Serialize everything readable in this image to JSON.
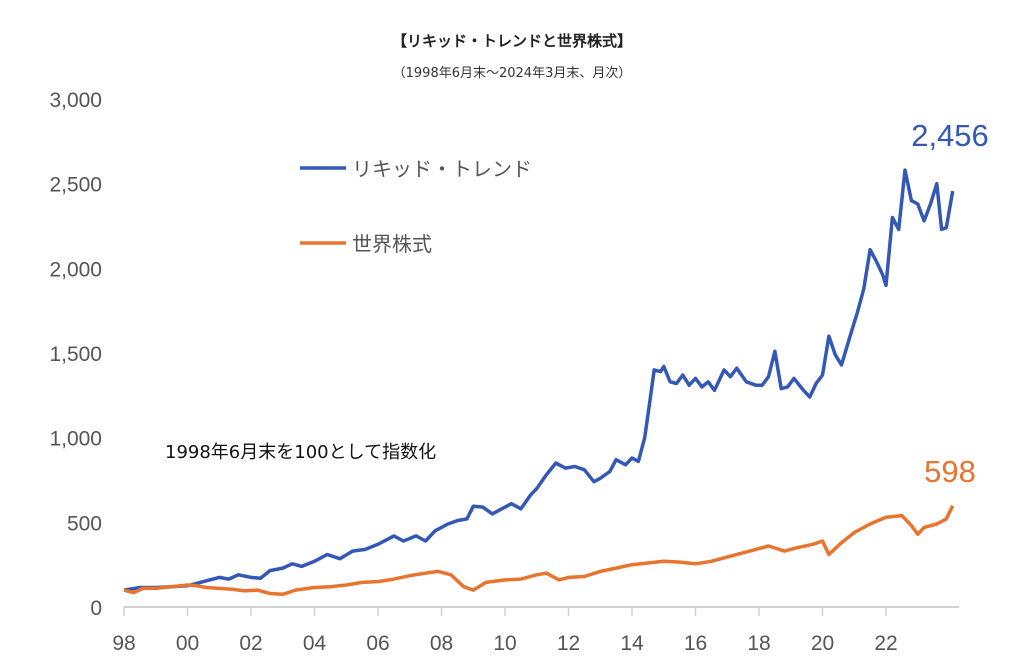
{
  "chart_data": {
    "type": "line",
    "title": "【リキッド・トレンドと世界株式】",
    "subtitle": "（1998年6月末～2024年3月末、月次）",
    "annotation": "1998年6月末を100として指数化",
    "xlabel": "",
    "ylabel": "",
    "xlim": [
      1998,
      2024
    ],
    "ylim": [
      0,
      3000
    ],
    "x_ticks": [
      "98",
      "00",
      "02",
      "04",
      "06",
      "08",
      "10",
      "12",
      "14",
      "16",
      "18",
      "20",
      "22"
    ],
    "y_ticks": [
      "0",
      "500",
      "1,000",
      "1,500",
      "2,000",
      "2,500",
      "3,000"
    ],
    "grid": false,
    "legend_position": "top-left",
    "series": [
      {
        "name": "リキッド・トレンド",
        "color": "#3358b5",
        "end_label": "2,456",
        "points": [
          [
            1998.0,
            100
          ],
          [
            1998.5,
            115
          ],
          [
            1999.0,
            115
          ],
          [
            1999.5,
            120
          ],
          [
            2000.0,
            125
          ],
          [
            2000.5,
            150
          ],
          [
            2001.0,
            175
          ],
          [
            2001.3,
            165
          ],
          [
            2001.6,
            190
          ],
          [
            2002.0,
            175
          ],
          [
            2002.3,
            170
          ],
          [
            2002.6,
            215
          ],
          [
            2003.0,
            230
          ],
          [
            2003.3,
            255
          ],
          [
            2003.6,
            240
          ],
          [
            2004.0,
            270
          ],
          [
            2004.4,
            310
          ],
          [
            2004.8,
            285
          ],
          [
            2005.2,
            330
          ],
          [
            2005.6,
            340
          ],
          [
            2006.0,
            370
          ],
          [
            2006.5,
            420
          ],
          [
            2006.8,
            390
          ],
          [
            2007.2,
            420
          ],
          [
            2007.5,
            390
          ],
          [
            2007.8,
            450
          ],
          [
            2008.2,
            490
          ],
          [
            2008.5,
            510
          ],
          [
            2008.8,
            520
          ],
          [
            2009.0,
            595
          ],
          [
            2009.3,
            590
          ],
          [
            2009.6,
            550
          ],
          [
            2009.9,
            580
          ],
          [
            2010.2,
            610
          ],
          [
            2010.5,
            580
          ],
          [
            2010.8,
            660
          ],
          [
            2011.0,
            700
          ],
          [
            2011.3,
            780
          ],
          [
            2011.6,
            850
          ],
          [
            2011.9,
            820
          ],
          [
            2012.2,
            830
          ],
          [
            2012.5,
            810
          ],
          [
            2012.8,
            740
          ],
          [
            2013.0,
            760
          ],
          [
            2013.3,
            800
          ],
          [
            2013.5,
            870
          ],
          [
            2013.8,
            840
          ],
          [
            2014.0,
            880
          ],
          [
            2014.2,
            860
          ],
          [
            2014.4,
            1000
          ],
          [
            2014.55,
            1200
          ],
          [
            2014.7,
            1400
          ],
          [
            2014.9,
            1390
          ],
          [
            2015.0,
            1420
          ],
          [
            2015.2,
            1330
          ],
          [
            2015.4,
            1320
          ],
          [
            2015.6,
            1370
          ],
          [
            2015.8,
            1310
          ],
          [
            2016.0,
            1350
          ],
          [
            2016.2,
            1300
          ],
          [
            2016.4,
            1330
          ],
          [
            2016.6,
            1280
          ],
          [
            2016.9,
            1400
          ],
          [
            2017.1,
            1360
          ],
          [
            2017.3,
            1410
          ],
          [
            2017.6,
            1330
          ],
          [
            2017.9,
            1310
          ],
          [
            2018.1,
            1310
          ],
          [
            2018.3,
            1360
          ],
          [
            2018.5,
            1510
          ],
          [
            2018.7,
            1290
          ],
          [
            2018.9,
            1300
          ],
          [
            2019.1,
            1350
          ],
          [
            2019.4,
            1280
          ],
          [
            2019.6,
            1240
          ],
          [
            2019.8,
            1320
          ],
          [
            2020.0,
            1370
          ],
          [
            2020.2,
            1600
          ],
          [
            2020.4,
            1490
          ],
          [
            2020.6,
            1430
          ],
          [
            2020.9,
            1620
          ],
          [
            2021.1,
            1740
          ],
          [
            2021.3,
            1880
          ],
          [
            2021.5,
            2110
          ],
          [
            2021.7,
            2040
          ],
          [
            2021.9,
            1960
          ],
          [
            2022.0,
            1900
          ],
          [
            2022.2,
            2300
          ],
          [
            2022.4,
            2230
          ],
          [
            2022.6,
            2580
          ],
          [
            2022.8,
            2400
          ],
          [
            2023.0,
            2380
          ],
          [
            2023.2,
            2280
          ],
          [
            2023.4,
            2380
          ],
          [
            2023.6,
            2500
          ],
          [
            2023.75,
            2230
          ],
          [
            2023.9,
            2240
          ],
          [
            2024.1,
            2456
          ]
        ]
      },
      {
        "name": "世界株式",
        "color": "#e8742e",
        "end_label": "598",
        "points": [
          [
            1998.0,
            100
          ],
          [
            1998.3,
            85
          ],
          [
            1998.6,
            110
          ],
          [
            1999.0,
            110
          ],
          [
            1999.5,
            120
          ],
          [
            2000.0,
            130
          ],
          [
            2000.3,
            125
          ],
          [
            2000.6,
            115
          ],
          [
            2001.0,
            110
          ],
          [
            2001.4,
            105
          ],
          [
            2001.8,
            95
          ],
          [
            2002.2,
            100
          ],
          [
            2002.6,
            80
          ],
          [
            2003.0,
            75
          ],
          [
            2003.4,
            100
          ],
          [
            2004.0,
            115
          ],
          [
            2004.5,
            120
          ],
          [
            2005.0,
            130
          ],
          [
            2005.5,
            145
          ],
          [
            2006.0,
            150
          ],
          [
            2006.5,
            165
          ],
          [
            2007.0,
            185
          ],
          [
            2007.5,
            200
          ],
          [
            2007.9,
            210
          ],
          [
            2008.3,
            190
          ],
          [
            2008.7,
            120
          ],
          [
            2009.0,
            100
          ],
          [
            2009.4,
            145
          ],
          [
            2010.0,
            160
          ],
          [
            2010.5,
            165
          ],
          [
            2011.0,
            190
          ],
          [
            2011.3,
            200
          ],
          [
            2011.7,
            160
          ],
          [
            2012.0,
            175
          ],
          [
            2012.5,
            180
          ],
          [
            2013.0,
            210
          ],
          [
            2013.5,
            230
          ],
          [
            2014.0,
            250
          ],
          [
            2014.5,
            260
          ],
          [
            2015.0,
            270
          ],
          [
            2015.5,
            265
          ],
          [
            2016.0,
            255
          ],
          [
            2016.5,
            270
          ],
          [
            2017.0,
            295
          ],
          [
            2017.5,
            320
          ],
          [
            2018.0,
            345
          ],
          [
            2018.3,
            360
          ],
          [
            2018.8,
            330
          ],
          [
            2019.2,
            350
          ],
          [
            2019.7,
            370
          ],
          [
            2020.0,
            390
          ],
          [
            2020.2,
            310
          ],
          [
            2020.6,
            380
          ],
          [
            2021.0,
            440
          ],
          [
            2021.5,
            490
          ],
          [
            2022.0,
            530
          ],
          [
            2022.5,
            540
          ],
          [
            2022.8,
            480
          ],
          [
            2023.0,
            430
          ],
          [
            2023.2,
            470
          ],
          [
            2023.6,
            490
          ],
          [
            2023.9,
            520
          ],
          [
            2024.1,
            598
          ]
        ]
      }
    ]
  }
}
